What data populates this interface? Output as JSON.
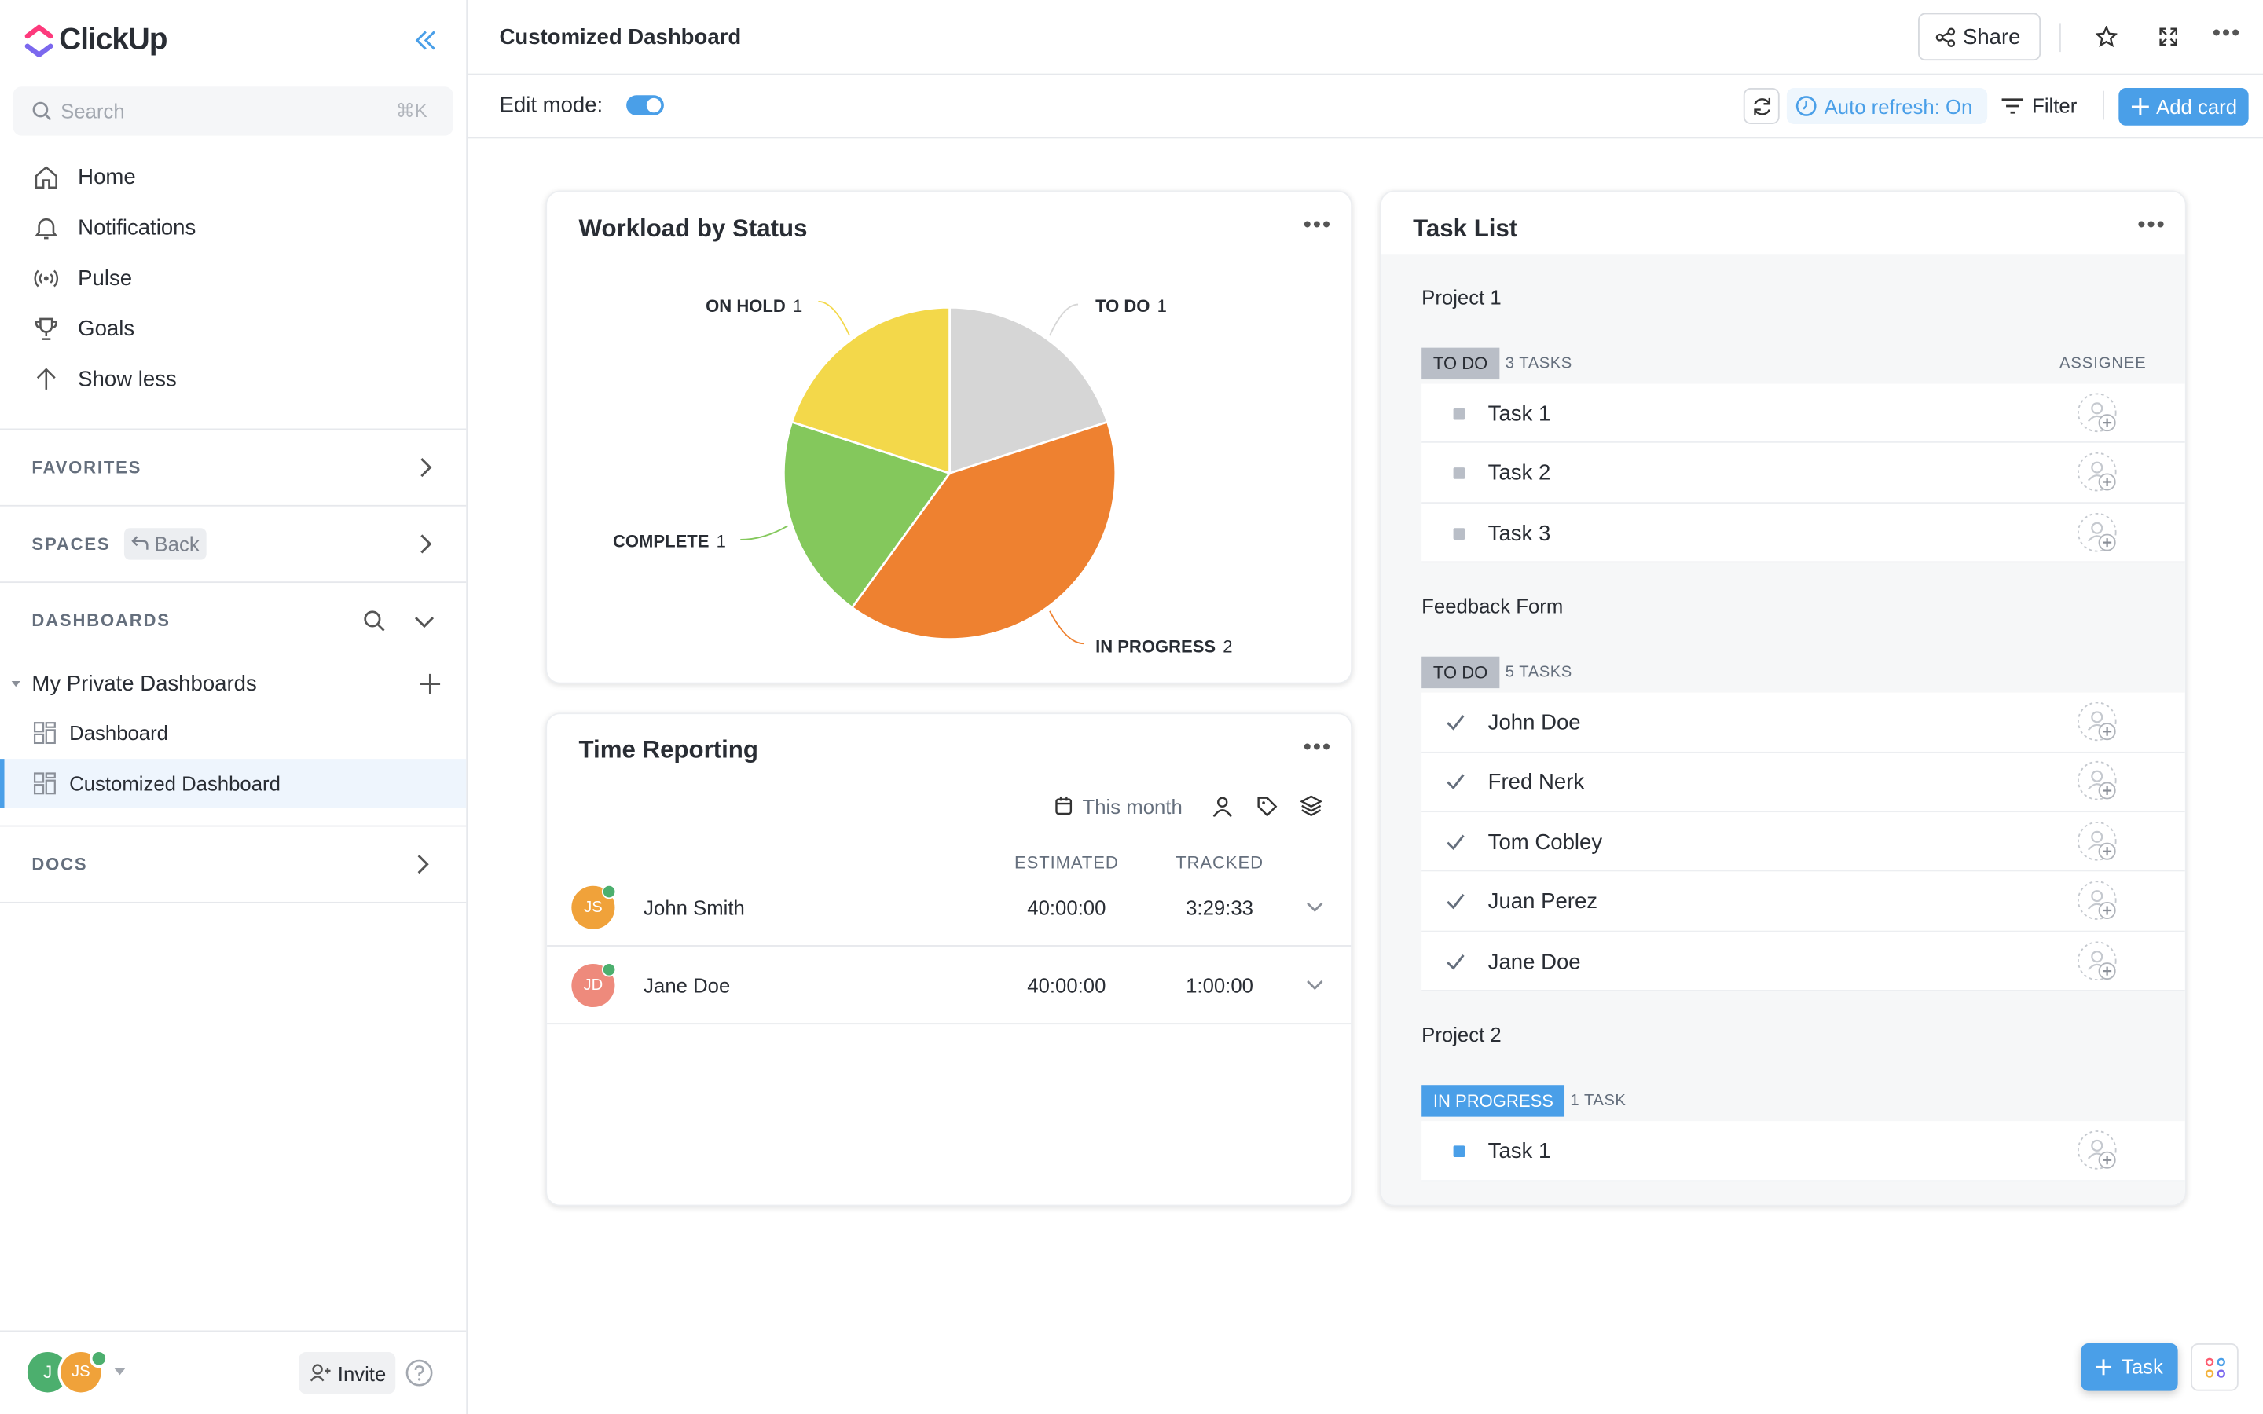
{
  "sidebar": {
    "brand": "ClickUp",
    "search": "Search",
    "shortcut": "⌘K",
    "nav": [
      "Home",
      "Notifications",
      "Pulse",
      "Goals",
      "Show less"
    ],
    "favorites": "FAVORITES",
    "spaces": "SPACES",
    "back": "Back",
    "dashboards": "DASHBOARDS",
    "group": "My Private Dashboards",
    "items": [
      "Dashboard",
      "Customized Dashboard"
    ],
    "docs": "DOCS",
    "avatars": [
      "J",
      "JS"
    ],
    "invite": "Invite"
  },
  "header": {
    "title": "Customized Dashboard",
    "share": "Share",
    "edit_mode": "Edit mode:",
    "auto_refresh": "Auto refresh: On",
    "filter": "Filter",
    "add_card": "Add card"
  },
  "workload": {
    "title": "Workload by Status",
    "chart_data": {
      "type": "pie",
      "categories": [
        "TO DO",
        "IN PROGRESS",
        "COMPLETE",
        "ON HOLD"
      ],
      "values": [
        1,
        2,
        1,
        1
      ],
      "colors": [
        "#d6d6d6",
        "#ee8130",
        "#84c85c",
        "#f3d84a"
      ]
    }
  },
  "time_reporting": {
    "title": "Time Reporting",
    "period": "This month",
    "columns": [
      "ESTIMATED",
      "TRACKED"
    ],
    "rows": [
      {
        "initials": "JS",
        "name": "John Smith",
        "estimated": "40:00:00",
        "tracked": "3:29:33",
        "color": "#f0a23a"
      },
      {
        "initials": "JD",
        "name": "Jane Doe",
        "estimated": "40:00:00",
        "tracked": "1:00:00",
        "color": "#ee8a7c"
      }
    ]
  },
  "task_list": {
    "title": "Task List",
    "assignee": "ASSIGNEE",
    "groups": [
      {
        "name": "Project 1",
        "status": "TO DO",
        "count": "3 TASKS",
        "color": "#b9bec7",
        "tasks": [
          "Task 1",
          "Task 2",
          "Task 3"
        ]
      },
      {
        "name": "Feedback Form",
        "status": "TO DO",
        "count": "5 TASKS",
        "color": "#b9bec7",
        "tasks": [
          "John Doe",
          "Fred Nerk",
          "Tom Cobley",
          "Juan Perez",
          "Jane Doe"
        ]
      },
      {
        "name": "Project 2",
        "status": "IN PROGRESS",
        "count": "1 TASK",
        "color": "#4a9fe8",
        "tasks": [
          "Task 1"
        ]
      }
    ]
  },
  "fab": "Task"
}
